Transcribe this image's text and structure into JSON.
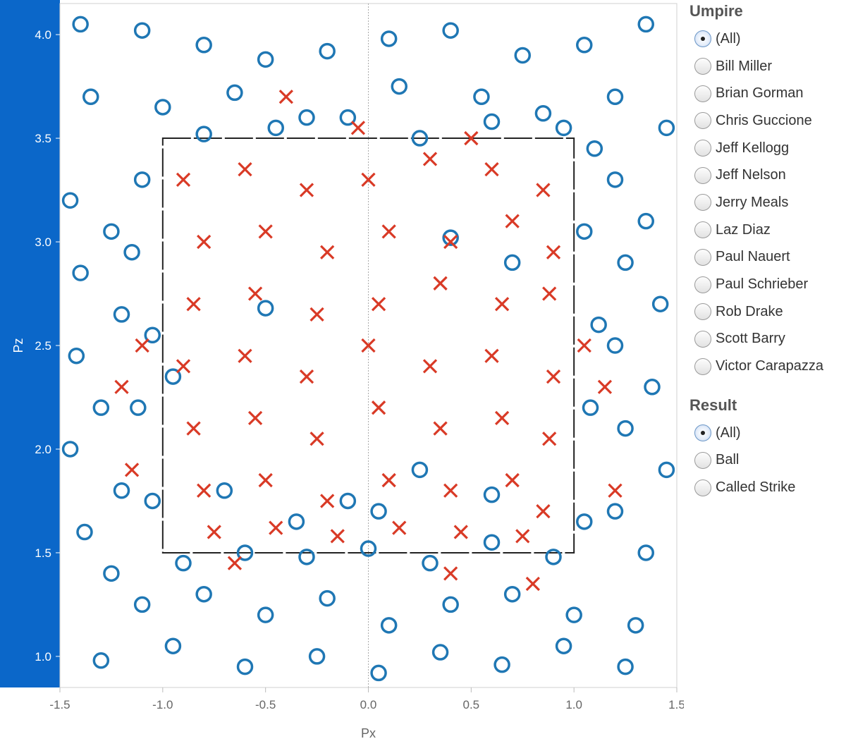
{
  "chart_data": {
    "type": "scatter",
    "title": "",
    "xlabel": "Px",
    "ylabel": "Pz",
    "xlim": [
      -1.5,
      1.5
    ],
    "ylim": [
      0.85,
      4.15
    ],
    "xticks": [
      "-1.5",
      "-1.0",
      "-0.5",
      "0.0",
      "0.5",
      "1.0",
      "1.5"
    ],
    "yticks": [
      "1.0",
      "1.5",
      "2.0",
      "2.5",
      "3.0",
      "3.5",
      "4.0"
    ],
    "strike_zone": {
      "x": [
        -1.0,
        1.0
      ],
      "z": [
        1.5,
        3.5
      ]
    },
    "series": [
      {
        "name": "Ball",
        "marker": "circle",
        "color": "#1f77b4",
        "points": [
          [
            -1.4,
            4.05
          ],
          [
            -1.1,
            4.02
          ],
          [
            -0.8,
            3.95
          ],
          [
            -0.5,
            3.88
          ],
          [
            -0.2,
            3.92
          ],
          [
            0.1,
            3.98
          ],
          [
            0.4,
            4.02
          ],
          [
            0.75,
            3.9
          ],
          [
            1.05,
            3.95
          ],
          [
            1.35,
            4.05
          ],
          [
            -1.35,
            3.7
          ],
          [
            -1.0,
            3.65
          ],
          [
            -0.65,
            3.72
          ],
          [
            -0.3,
            3.6
          ],
          [
            0.15,
            3.75
          ],
          [
            0.55,
            3.7
          ],
          [
            0.85,
            3.62
          ],
          [
            1.2,
            3.7
          ],
          [
            1.45,
            3.55
          ],
          [
            -1.45,
            3.2
          ],
          [
            -1.25,
            3.05
          ],
          [
            -1.4,
            2.85
          ],
          [
            -1.2,
            2.65
          ],
          [
            -1.42,
            2.45
          ],
          [
            -1.3,
            2.2
          ],
          [
            -1.45,
            2.0
          ],
          [
            -1.2,
            1.8
          ],
          [
            -1.38,
            1.6
          ],
          [
            -1.25,
            1.4
          ],
          [
            1.2,
            3.3
          ],
          [
            1.35,
            3.1
          ],
          [
            1.25,
            2.9
          ],
          [
            1.42,
            2.7
          ],
          [
            1.2,
            2.5
          ],
          [
            1.38,
            2.3
          ],
          [
            1.25,
            2.1
          ],
          [
            1.45,
            1.9
          ],
          [
            1.2,
            1.7
          ],
          [
            1.35,
            1.5
          ],
          [
            -1.1,
            1.25
          ],
          [
            -0.8,
            1.3
          ],
          [
            -0.5,
            1.2
          ],
          [
            -0.2,
            1.28
          ],
          [
            0.1,
            1.15
          ],
          [
            0.4,
            1.25
          ],
          [
            0.7,
            1.3
          ],
          [
            1.0,
            1.2
          ],
          [
            1.3,
            1.15
          ],
          [
            -1.3,
            0.98
          ],
          [
            -0.95,
            1.05
          ],
          [
            -0.6,
            0.95
          ],
          [
            -0.25,
            1.0
          ],
          [
            0.05,
            0.92
          ],
          [
            0.35,
            1.02
          ],
          [
            0.65,
            0.96
          ],
          [
            0.95,
            1.05
          ],
          [
            1.25,
            0.95
          ],
          [
            -1.1,
            3.3
          ],
          [
            -1.15,
            2.95
          ],
          [
            -1.05,
            2.55
          ],
          [
            -1.12,
            2.2
          ],
          [
            -1.05,
            1.75
          ],
          [
            1.1,
            3.45
          ],
          [
            1.05,
            3.05
          ],
          [
            1.12,
            2.6
          ],
          [
            1.08,
            2.2
          ],
          [
            1.05,
            1.65
          ],
          [
            -0.9,
            1.45
          ],
          [
            -0.6,
            1.5
          ],
          [
            -0.3,
            1.48
          ],
          [
            0.0,
            1.52
          ],
          [
            0.3,
            1.45
          ],
          [
            0.6,
            1.55
          ],
          [
            0.9,
            1.48
          ],
          [
            -0.8,
            3.52
          ],
          [
            -0.45,
            3.55
          ],
          [
            -0.1,
            3.6
          ],
          [
            0.25,
            3.5
          ],
          [
            0.6,
            3.58
          ],
          [
            0.95,
            3.55
          ],
          [
            -0.95,
            2.35
          ],
          [
            -0.5,
            2.68
          ],
          [
            0.4,
            3.02
          ],
          [
            0.7,
            2.9
          ],
          [
            -0.1,
            1.75
          ],
          [
            0.05,
            1.7
          ],
          [
            0.25,
            1.9
          ],
          [
            0.6,
            1.78
          ],
          [
            -0.7,
            1.8
          ],
          [
            -0.35,
            1.65
          ]
        ]
      },
      {
        "name": "Called Strike",
        "marker": "x",
        "color": "#d93a26",
        "points": [
          [
            -0.9,
            3.3
          ],
          [
            -0.6,
            3.35
          ],
          [
            -0.3,
            3.25
          ],
          [
            0.0,
            3.3
          ],
          [
            0.3,
            3.4
          ],
          [
            0.6,
            3.35
          ],
          [
            0.85,
            3.25
          ],
          [
            -0.8,
            3.0
          ],
          [
            -0.5,
            3.05
          ],
          [
            -0.2,
            2.95
          ],
          [
            0.1,
            3.05
          ],
          [
            0.4,
            3.0
          ],
          [
            0.7,
            3.1
          ],
          [
            0.9,
            2.95
          ],
          [
            -0.85,
            2.7
          ],
          [
            -0.55,
            2.75
          ],
          [
            -0.25,
            2.65
          ],
          [
            0.05,
            2.7
          ],
          [
            0.35,
            2.8
          ],
          [
            0.65,
            2.7
          ],
          [
            0.88,
            2.75
          ],
          [
            -0.9,
            2.4
          ],
          [
            -0.6,
            2.45
          ],
          [
            -0.3,
            2.35
          ],
          [
            0.0,
            2.5
          ],
          [
            0.3,
            2.4
          ],
          [
            0.6,
            2.45
          ],
          [
            0.9,
            2.35
          ],
          [
            -0.85,
            2.1
          ],
          [
            -0.55,
            2.15
          ],
          [
            -0.25,
            2.05
          ],
          [
            0.05,
            2.2
          ],
          [
            0.35,
            2.1
          ],
          [
            0.65,
            2.15
          ],
          [
            0.88,
            2.05
          ],
          [
            -0.8,
            1.8
          ],
          [
            -0.5,
            1.85
          ],
          [
            -0.2,
            1.75
          ],
          [
            0.1,
            1.85
          ],
          [
            0.4,
            1.8
          ],
          [
            0.7,
            1.85
          ],
          [
            0.85,
            1.7
          ],
          [
            -0.75,
            1.6
          ],
          [
            -0.45,
            1.62
          ],
          [
            -0.15,
            1.58
          ],
          [
            0.15,
            1.62
          ],
          [
            0.45,
            1.6
          ],
          [
            0.75,
            1.58
          ],
          [
            -1.1,
            2.5
          ],
          [
            -1.2,
            2.3
          ],
          [
            1.05,
            2.5
          ],
          [
            1.15,
            2.3
          ],
          [
            -1.15,
            1.9
          ],
          [
            1.2,
            1.8
          ],
          [
            -0.4,
            3.7
          ],
          [
            -0.05,
            3.55
          ],
          [
            0.5,
            3.5
          ],
          [
            0.8,
            1.35
          ],
          [
            -0.65,
            1.45
          ],
          [
            0.4,
            1.4
          ]
        ]
      }
    ]
  },
  "filters": {
    "umpire": {
      "title": "Umpire",
      "selected": 0,
      "options": [
        "(All)",
        "Bill Miller",
        "Brian Gorman",
        "Chris Guccione",
        "Jeff Kellogg",
        "Jeff Nelson",
        "Jerry Meals",
        "Laz Diaz",
        "Paul Nauert",
        "Paul Schrieber",
        "Rob Drake",
        "Scott Barry",
        "Victor Carapazza"
      ]
    },
    "result": {
      "title": "Result",
      "selected": 0,
      "options": [
        "(All)",
        "Ball",
        "Called Strike"
      ]
    }
  },
  "colors": {
    "ball": "#1f77b4",
    "strike": "#d93a26",
    "axis_bar": "#0b67c9"
  }
}
